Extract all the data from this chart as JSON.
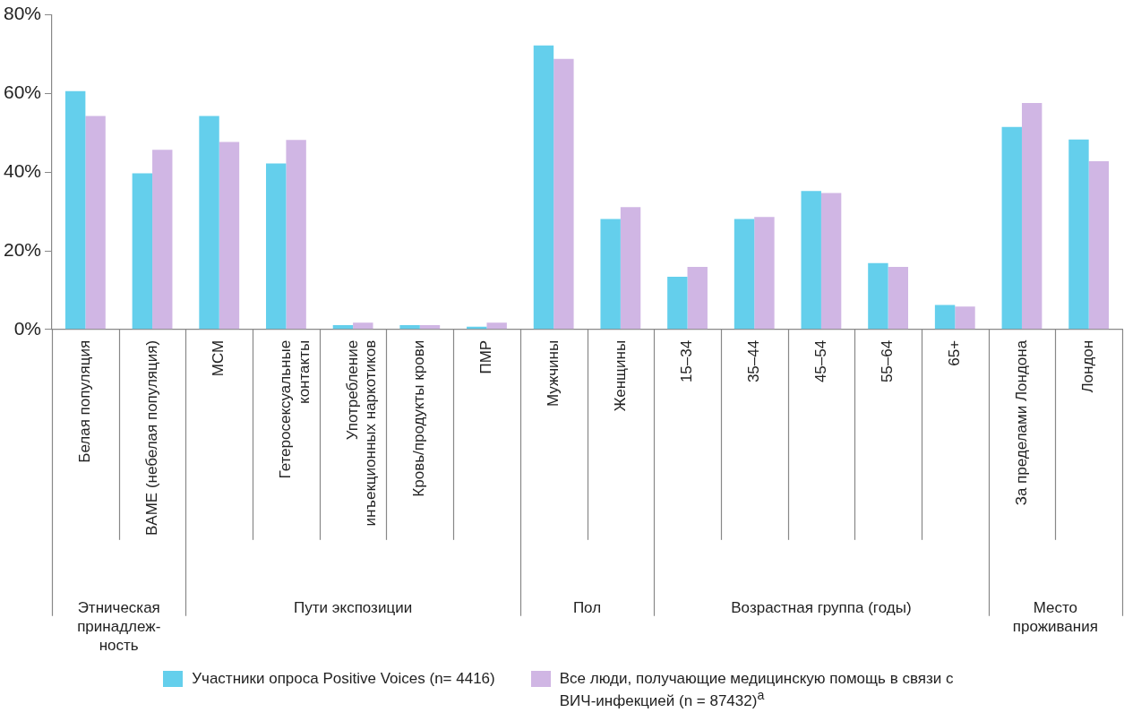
{
  "chart_data": {
    "type": "bar",
    "categories": [
      "Белая популяция",
      "BAME (небелая популяция)",
      "МСМ",
      "Гетеросексуальные контакты",
      "Употребление инъекционных наркотиков",
      "Кровь/продукты крови",
      "ПМР",
      "Мужчины",
      "Женщины",
      "15–34",
      "35–44",
      "45–54",
      "55–64",
      "65+",
      "За пределами Лондона",
      "Лондон"
    ],
    "series": [
      {
        "name": "Участники опроса Positive Voices (n= 4416)",
        "color": "#64cfec",
        "values": [
          60.6,
          39.7,
          54.3,
          42.2,
          1.1,
          1.1,
          0.7,
          72.2,
          28.1,
          13.4,
          28.1,
          35.2,
          16.9,
          6.2,
          51.5,
          48.3
        ]
      },
      {
        "name": "Все люди, получающие медицинскую помощь в связи с ВИЧ-инфекцией (n = 87432)$^{a}$",
        "color": "#d0b6e4",
        "values": [
          54.3,
          45.7,
          47.7,
          48.2,
          1.7,
          1.1,
          1.7,
          68.8,
          31.1,
          15.9,
          28.6,
          34.7,
          15.9,
          5.8,
          57.6,
          42.8
        ]
      }
    ],
    "ylim": [
      0,
      80
    ],
    "yticks": [
      {
        "value": 0,
        "label": "0%"
      },
      {
        "value": 20,
        "label": "20%"
      },
      {
        "value": 40,
        "label": "40%"
      },
      {
        "value": 60,
        "label": "60%"
      },
      {
        "value": 80,
        "label": "80%"
      }
    ],
    "annotations": [
      "Этническая принадлеж-ность",
      "Пути экспозиции",
      "Пол",
      "Возрастная группа (годы)",
      "Место проживания"
    ],
    "grid": false,
    "legend": "bottom"
  }
}
